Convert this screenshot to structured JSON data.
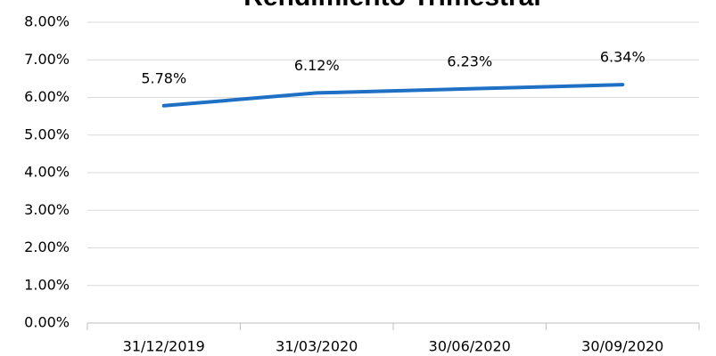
{
  "chart_data": {
    "type": "line",
    "title": "Rendimiento Trimestral",
    "categories": [
      "31/12/2019",
      "31/03/2020",
      "30/06/2020",
      "30/09/2020"
    ],
    "values": [
      5.78,
      6.12,
      6.23,
      6.34
    ],
    "value_labels": [
      "5.78%",
      "6.12%",
      "6.23%",
      "6.34%"
    ],
    "color": "#1f6fc5",
    "ylim": [
      0,
      8
    ],
    "yticks": [
      {
        "value": 0,
        "label": "0.00%"
      },
      {
        "value": 1,
        "label": "1.00%"
      },
      {
        "value": 2,
        "label": "2.00%"
      },
      {
        "value": 3,
        "label": "3.00%"
      },
      {
        "value": 4,
        "label": "4.00%"
      },
      {
        "value": 5,
        "label": "5.00%"
      },
      {
        "value": 6,
        "label": "6.00%"
      },
      {
        "value": 7,
        "label": "7.00%"
      },
      {
        "value": 8,
        "label": "8.00%"
      }
    ],
    "grid": true
  }
}
